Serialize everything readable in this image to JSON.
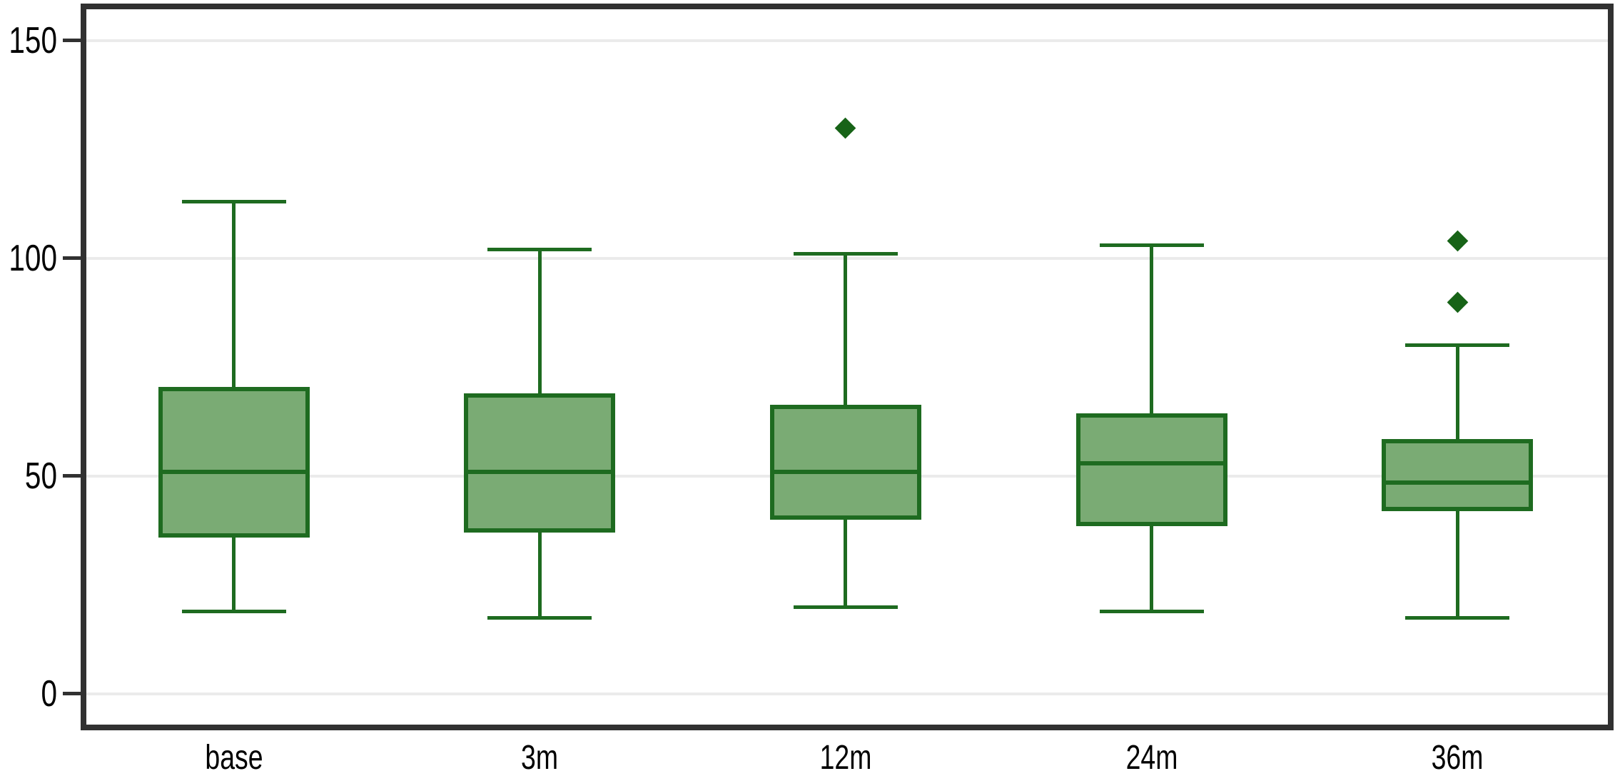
{
  "chart_data": {
    "type": "box",
    "title": "",
    "xlabel": "",
    "ylabel": "",
    "categories": [
      "base",
      "3m",
      "12m",
      "24m",
      "36m"
    ],
    "series": [
      {
        "category": "base",
        "whisker_low": 19,
        "q1": 36,
        "median": 51,
        "q3": 70.5,
        "whisker_high": 113,
        "outliers": []
      },
      {
        "category": "3m",
        "whisker_low": 17.5,
        "q1": 37,
        "median": 51,
        "q3": 69,
        "whisker_high": 102,
        "outliers": []
      },
      {
        "category": "12m",
        "whisker_low": 20,
        "q1": 40,
        "median": 51,
        "q3": 66.5,
        "whisker_high": 101,
        "outliers": [
          130
        ]
      },
      {
        "category": "24m",
        "whisker_low": 19,
        "q1": 38.5,
        "median": 53,
        "q3": 64.5,
        "whisker_high": 103,
        "outliers": []
      },
      {
        "category": "36m",
        "whisker_low": 17.5,
        "q1": 42,
        "median": 48.5,
        "q3": 58.5,
        "whisker_high": 80,
        "outliers": [
          90,
          104
        ]
      }
    ],
    "y_axis": {
      "tick_values": [
        0,
        50,
        100,
        150
      ],
      "tick_labels": [
        "0",
        "50",
        "100",
        "150"
      ],
      "frame_value_range": [
        -7.6,
        158.6
      ]
    },
    "x_axis": {
      "tick_labels": [
        "base",
        "3m",
        "12m",
        "24m",
        "36m"
      ]
    },
    "grid": "horizontal-gridlines",
    "legend": "none",
    "colors": {
      "box_fill": "#7aab74",
      "box_border": "#1e6b20",
      "outlier": "#176317",
      "gridline": "#ebebeb",
      "frame": "#313131",
      "tick": "#313131",
      "label_text": "#000000",
      "background": "#ffffff"
    }
  }
}
